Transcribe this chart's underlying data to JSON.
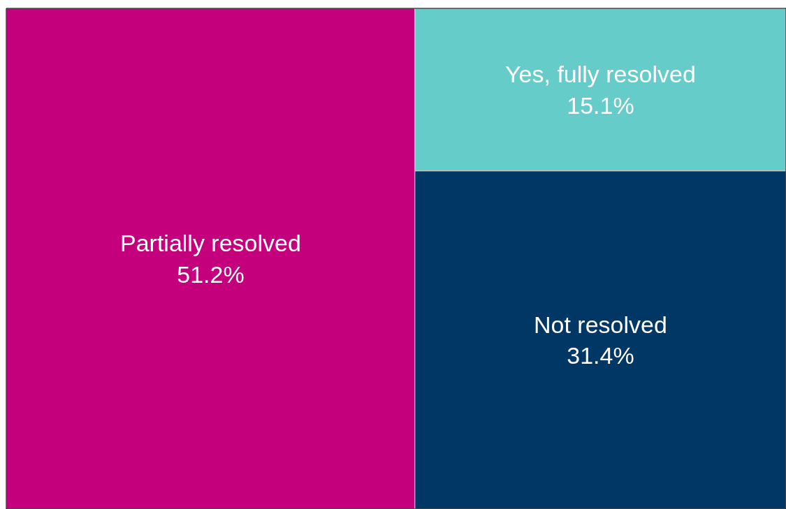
{
  "chart_data": {
    "type": "other",
    "categories": [
      "Partially resolved",
      "Yes, fully resolved",
      "Not resolved"
    ],
    "values": [
      51.2,
      15.1,
      31.4
    ],
    "value_labels": [
      "51.2%",
      "15.1%",
      "31.4%"
    ],
    "colors": [
      "#c5007d",
      "#66ccca",
      "#003764"
    ]
  }
}
